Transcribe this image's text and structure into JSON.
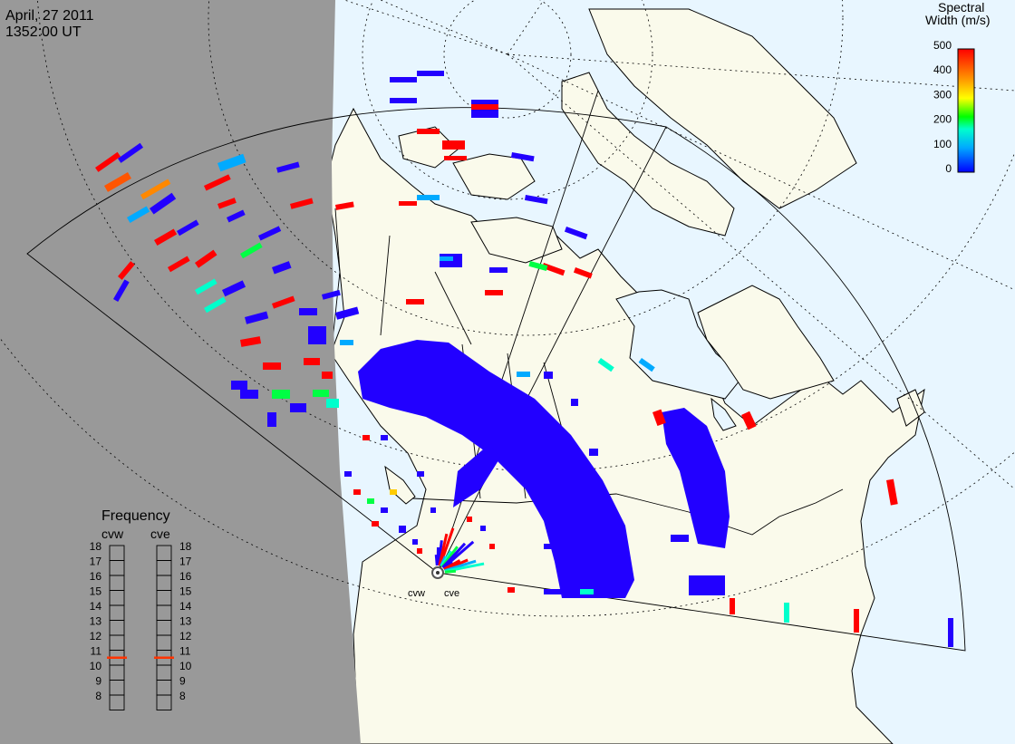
{
  "header": {
    "date": "April, 27 2011",
    "time": "1352:00 UT"
  },
  "colorbar": {
    "title_line1": "Spectral",
    "title_line2": "Width (m/s)",
    "ticks": [
      "500",
      "400",
      "300",
      "200",
      "100",
      "0"
    ]
  },
  "frequency_panel": {
    "title": "Frequency",
    "radars": [
      {
        "name": "cvw",
        "current_mhz": 10.5
      },
      {
        "name": "cve",
        "current_mhz": 10.5
      }
    ],
    "scale": [
      "18",
      "17",
      "16",
      "15",
      "14",
      "13",
      "12",
      "11",
      "10",
      "9",
      "8"
    ],
    "marker_color": "#ff3300"
  },
  "radar_labels": {
    "west": "cvw",
    "east": "cve"
  },
  "colors": {
    "night": "#999999",
    "ocean": "#e8f6ff",
    "land": "#fafaeb",
    "scatter_blue": "#2200ff",
    "scatter_red": "#ff0000"
  }
}
